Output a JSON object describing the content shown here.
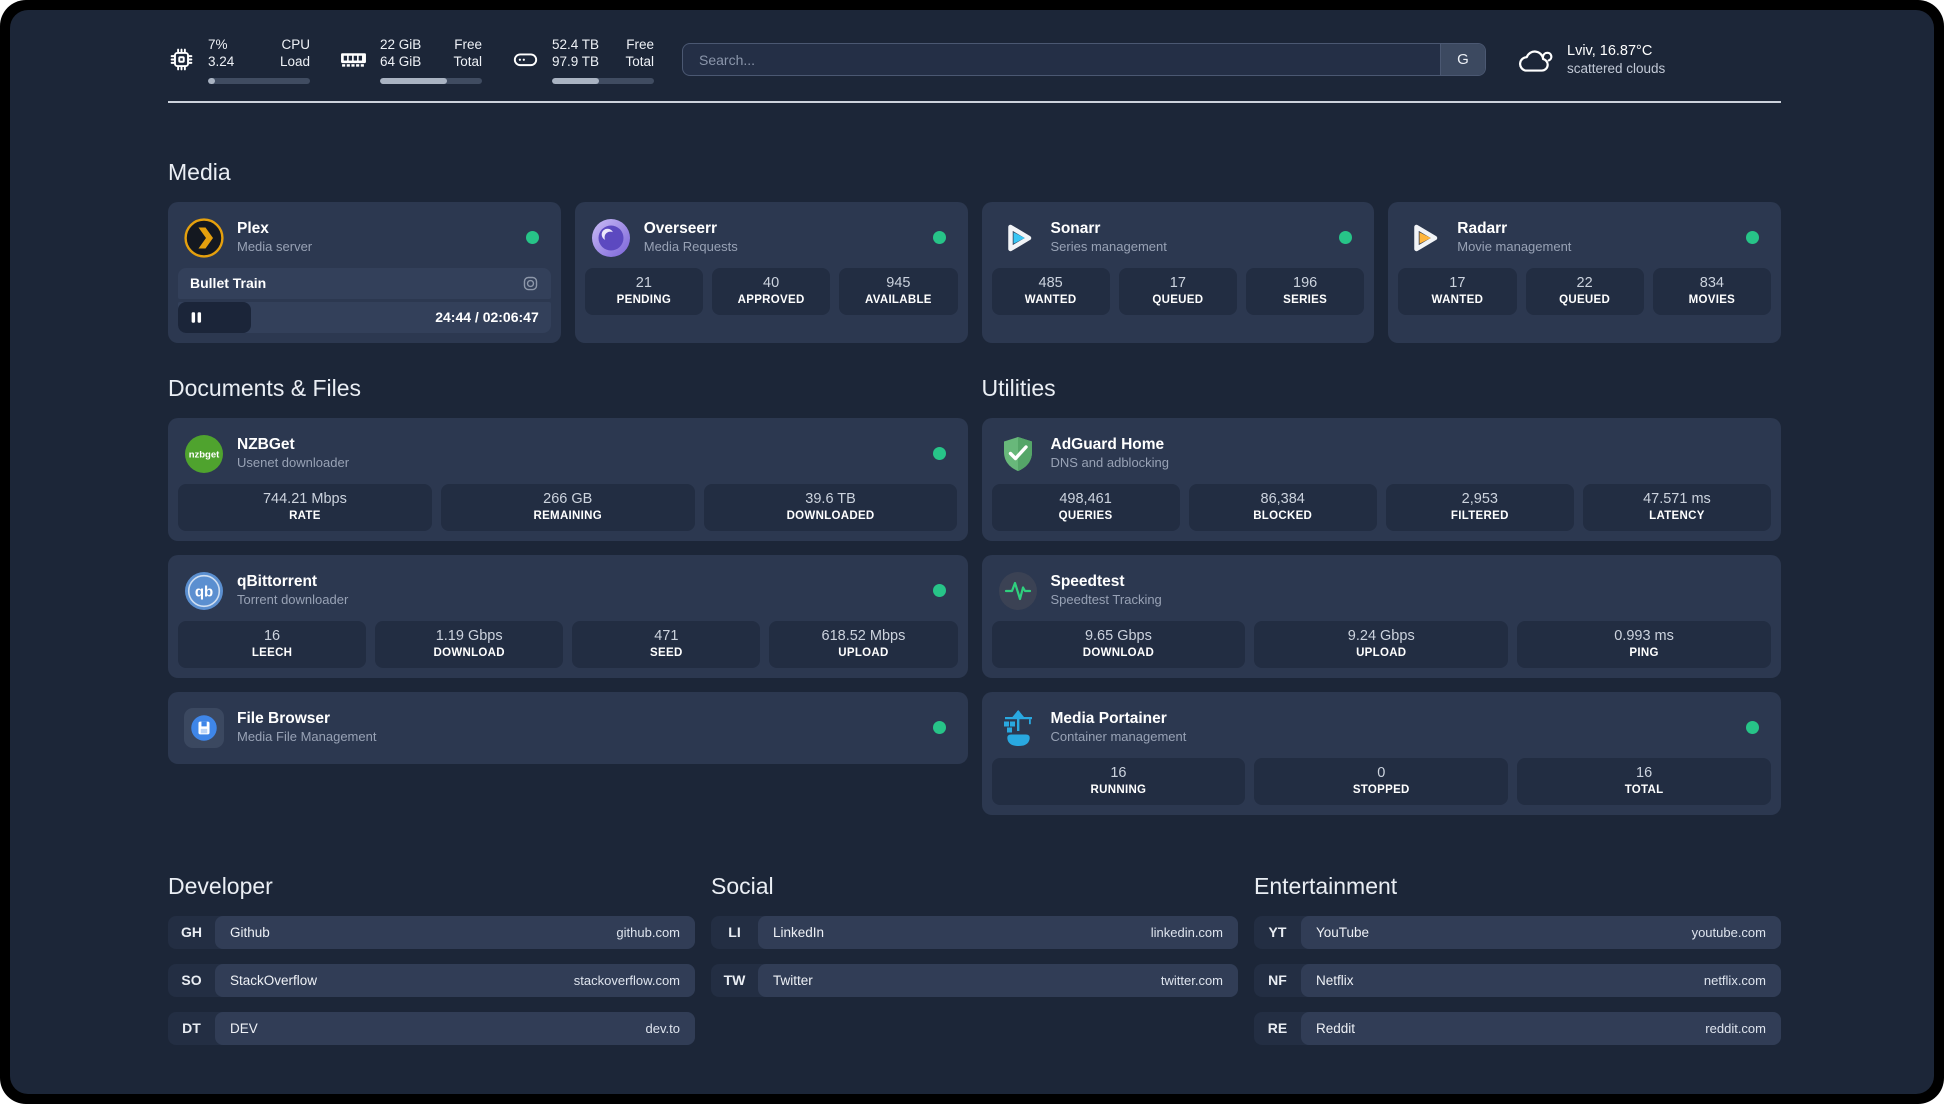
{
  "colors": {
    "status_online": "#27c488",
    "page_bg": "#1c2638",
    "card_bg": "#2c3850",
    "stat_tile_bg": "#222d42",
    "plex_accent": "#e5a00d",
    "overseerr_accent": "#7a63d8",
    "sonarr_accent": "#38c6f4",
    "radarr_accent": "#ffb53c",
    "nzbget_accent": "#4fa32e",
    "qbittorrent_accent": "#5b8fd0",
    "adguard_accent": "#68b87a",
    "speedtest_accent": "#2fd07e",
    "portainer_accent": "#29a8e0",
    "filebrowser_accent": "#3f86e8"
  },
  "header": {
    "stats": [
      {
        "name": "CPU",
        "values": [
          "7%",
          "3.24"
        ],
        "labels": [
          "CPU",
          "Load"
        ],
        "progress_pct": 7
      },
      {
        "name": "Memory",
        "values": [
          "22 GiB",
          "64 GiB"
        ],
        "labels": [
          "Free",
          "Total"
        ],
        "progress_pct": 66
      },
      {
        "name": "Storage",
        "values": [
          "52.4 TB",
          "97.9 TB"
        ],
        "labels": [
          "Free",
          "Total"
        ],
        "progress_pct": 46
      }
    ],
    "search": {
      "placeholder": "Search...",
      "engine_button": "G"
    },
    "weather": {
      "location": "Lviv, 16.87°C",
      "condition": "scattered clouds"
    }
  },
  "media": {
    "title": "Media",
    "plex": {
      "name": "Plex",
      "desc": "Media server",
      "now_playing": "Bullet Train",
      "time": "24:44 / 02:06:47",
      "progress_pct": 19.5
    },
    "overseerr": {
      "name": "Overseerr",
      "desc": "Media Requests",
      "stats": [
        {
          "value": "21",
          "label": "PENDING"
        },
        {
          "value": "40",
          "label": "APPROVED"
        },
        {
          "value": "945",
          "label": "AVAILABLE"
        }
      ]
    },
    "sonarr": {
      "name": "Sonarr",
      "desc": "Series management",
      "stats": [
        {
          "value": "485",
          "label": "WANTED"
        },
        {
          "value": "17",
          "label": "QUEUED"
        },
        {
          "value": "196",
          "label": "SERIES"
        }
      ]
    },
    "radarr": {
      "name": "Radarr",
      "desc": "Movie management",
      "stats": [
        {
          "value": "17",
          "label": "WANTED"
        },
        {
          "value": "22",
          "label": "QUEUED"
        },
        {
          "value": "834",
          "label": "MOVIES"
        }
      ]
    }
  },
  "documents": {
    "title": "Documents & Files",
    "nzbget": {
      "name": "NZBGet",
      "desc": "Usenet downloader",
      "stats": [
        {
          "value": "744.21 Mbps",
          "label": "RATE"
        },
        {
          "value": "266 GB",
          "label": "REMAINING"
        },
        {
          "value": "39.6 TB",
          "label": "DOWNLOADED"
        }
      ]
    },
    "qbittorrent": {
      "name": "qBittorrent",
      "desc": "Torrent downloader",
      "stats": [
        {
          "value": "16",
          "label": "LEECH"
        },
        {
          "value": "1.19 Gbps",
          "label": "DOWNLOAD"
        },
        {
          "value": "471",
          "label": "SEED"
        },
        {
          "value": "618.52 Mbps",
          "label": "UPLOAD"
        }
      ]
    },
    "filebrowser": {
      "name": "File Browser",
      "desc": "Media File Management"
    }
  },
  "utilities": {
    "title": "Utilities",
    "adguard": {
      "name": "AdGuard Home",
      "desc": "DNS and adblocking",
      "stats": [
        {
          "value": "498,461",
          "label": "QUERIES"
        },
        {
          "value": "86,384",
          "label": "BLOCKED"
        },
        {
          "value": "2,953",
          "label": "FILTERED"
        },
        {
          "value": "47.571 ms",
          "label": "LATENCY"
        }
      ]
    },
    "speedtest": {
      "name": "Speedtest",
      "desc": "Speedtest Tracking",
      "stats": [
        {
          "value": "9.65 Gbps",
          "label": "DOWNLOAD"
        },
        {
          "value": "9.24 Gbps",
          "label": "UPLOAD"
        },
        {
          "value": "0.993 ms",
          "label": "PING"
        }
      ]
    },
    "portainer": {
      "name": "Media Portainer",
      "desc": "Container management",
      "stats": [
        {
          "value": "16",
          "label": "RUNNING"
        },
        {
          "value": "0",
          "label": "STOPPED"
        },
        {
          "value": "16",
          "label": "TOTAL"
        }
      ]
    }
  },
  "bookmarks": {
    "developer": {
      "title": "Developer",
      "items": [
        {
          "abbr": "GH",
          "name": "Github",
          "url": "github.com"
        },
        {
          "abbr": "SO",
          "name": "StackOverflow",
          "url": "stackoverflow.com"
        },
        {
          "abbr": "DT",
          "name": "DEV",
          "url": "dev.to"
        }
      ]
    },
    "social": {
      "title": "Social",
      "items": [
        {
          "abbr": "LI",
          "name": "LinkedIn",
          "url": "linkedin.com"
        },
        {
          "abbr": "TW",
          "name": "Twitter",
          "url": "twitter.com"
        }
      ]
    },
    "entertainment": {
      "title": "Entertainment",
      "items": [
        {
          "abbr": "YT",
          "name": "YouTube",
          "url": "youtube.com"
        },
        {
          "abbr": "NF",
          "name": "Netflix",
          "url": "netflix.com"
        },
        {
          "abbr": "RE",
          "name": "Reddit",
          "url": "reddit.com"
        }
      ]
    }
  }
}
